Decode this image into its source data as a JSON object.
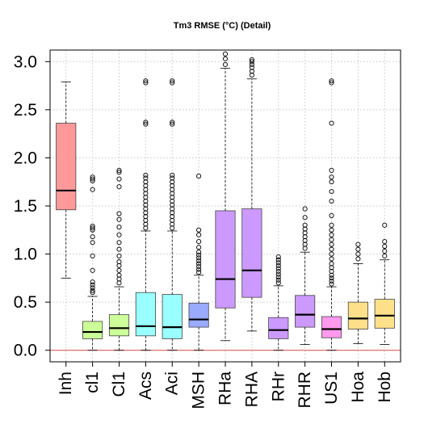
{
  "chart_data": {
    "type": "box",
    "title": "Tm3 RMSE (°C) (Detail)",
    "xlabel": "",
    "ylabel": "",
    "ylim": [
      -0.12,
      3.12
    ],
    "y_ticks": [
      0.0,
      0.5,
      1.0,
      1.5,
      2.0,
      2.5,
      3.0
    ],
    "y_tick_labels": [
      "0.0",
      "0.5",
      "1.0",
      "1.5",
      "2.0",
      "2.5",
      "3.0"
    ],
    "grid": true,
    "reference_line": {
      "y": 0.0,
      "color": "#e06060"
    },
    "categories": [
      "Inh",
      "cl1",
      "Cl1",
      "Acs",
      "Aci",
      "MSH",
      "RHa",
      "RHA",
      "RHr",
      "RHR",
      "US1",
      "Hoa",
      "Hob"
    ],
    "colors": [
      "#ff9999",
      "#ccff99",
      "#ccff99",
      "#99ffff",
      "#99ffff",
      "#99aaff",
      "#cc99ff",
      "#cc99ff",
      "#cc99ff",
      "#cc99ff",
      "#ff99ee",
      "#ffe08a",
      "#ffe08a"
    ],
    "boxes": [
      {
        "label": "Inh",
        "whisker_low": 0.75,
        "q1": 1.46,
        "median": 1.66,
        "q3": 2.36,
        "whisker_high": 2.79,
        "outliers": []
      },
      {
        "label": "cl1",
        "whisker_low": 0.0,
        "q1": 0.12,
        "median": 0.19,
        "q3": 0.3,
        "whisker_high": 0.56,
        "outliers": [
          0.6,
          0.62,
          0.65,
          0.68,
          0.71,
          0.83,
          0.98,
          1.12,
          1.18,
          1.25,
          1.27,
          1.29,
          1.67,
          1.76,
          1.78,
          1.8
        ]
      },
      {
        "label": "Cl1",
        "whisker_low": 0.0,
        "q1": 0.15,
        "median": 0.23,
        "q3": 0.37,
        "whisker_high": 0.66,
        "outliers": [
          0.7,
          0.74,
          0.78,
          0.83,
          0.88,
          0.92,
          0.98,
          1.05,
          1.12,
          1.2,
          1.28,
          1.36,
          1.42,
          1.7,
          1.78,
          1.85,
          1.87
        ]
      },
      {
        "label": "Acs",
        "whisker_low": 0.0,
        "q1": 0.15,
        "median": 0.25,
        "q3": 0.6,
        "whisker_high": 1.24,
        "outliers": [
          1.27,
          1.31,
          1.35,
          1.39,
          1.43,
          1.47,
          1.51,
          1.55,
          1.59,
          1.63,
          1.67,
          1.71,
          1.75,
          1.79,
          1.82,
          2.35,
          2.37,
          2.78,
          2.8
        ]
      },
      {
        "label": "Aci",
        "whisker_low": 0.0,
        "q1": 0.12,
        "median": 0.24,
        "q3": 0.58,
        "whisker_high": 1.24,
        "outliers": [
          1.27,
          1.31,
          1.35,
          1.39,
          1.43,
          1.47,
          1.51,
          1.55,
          1.59,
          1.63,
          1.67,
          1.71,
          1.75,
          1.79,
          1.82,
          2.35,
          2.37,
          2.78,
          2.8
        ]
      },
      {
        "label": "MSH",
        "whisker_low": 0.0,
        "q1": 0.24,
        "median": 0.32,
        "q3": 0.49,
        "whisker_high": 0.78,
        "outliers": [
          0.81,
          0.84,
          0.87,
          0.9,
          0.93,
          0.96,
          0.99,
          1.02,
          1.07,
          1.13,
          1.2,
          1.25,
          1.81
        ]
      },
      {
        "label": "RHa",
        "whisker_low": 0.1,
        "q1": 0.44,
        "median": 0.74,
        "q3": 1.45,
        "whisker_high": 2.93,
        "outliers": [
          2.97,
          3.03,
          3.08
        ]
      },
      {
        "label": "RHA",
        "whisker_low": 0.2,
        "q1": 0.55,
        "median": 0.83,
        "q3": 1.47,
        "whisker_high": 2.82,
        "outliers": [
          2.86,
          2.9,
          2.94,
          2.97,
          3.0,
          3.02
        ]
      },
      {
        "label": "RHr",
        "whisker_low": 0.0,
        "q1": 0.12,
        "median": 0.21,
        "q3": 0.34,
        "whisker_high": 0.67,
        "outliers": [
          0.7,
          0.73,
          0.76,
          0.79,
          0.82,
          0.85,
          0.88,
          0.91,
          0.94,
          0.97
        ]
      },
      {
        "label": "RHR",
        "whisker_low": 0.06,
        "q1": 0.24,
        "median": 0.37,
        "q3": 0.57,
        "whisker_high": 1.02,
        "outliers": [
          1.06,
          1.1,
          1.14,
          1.18,
          1.22,
          1.26,
          1.3,
          1.38,
          1.47
        ]
      },
      {
        "label": "US1",
        "whisker_low": 0.0,
        "q1": 0.13,
        "median": 0.22,
        "q3": 0.35,
        "whisker_high": 0.66,
        "outliers": [
          0.69,
          0.72,
          0.75,
          0.78,
          0.82,
          0.86,
          0.9,
          0.95,
          1.0,
          1.05,
          1.1,
          1.15,
          1.2,
          1.25,
          1.3,
          1.4,
          1.55,
          1.65,
          1.75,
          1.8,
          1.87,
          2.36,
          2.78,
          2.8
        ]
      },
      {
        "label": "Hoa",
        "whisker_low": 0.07,
        "q1": 0.22,
        "median": 0.33,
        "q3": 0.5,
        "whisker_high": 0.9,
        "outliers": [
          0.95,
          1.0,
          1.05,
          1.1
        ]
      },
      {
        "label": "Hob",
        "whisker_low": 0.06,
        "q1": 0.23,
        "median": 0.36,
        "q3": 0.53,
        "whisker_high": 0.94,
        "outliers": [
          0.98,
          1.03,
          1.08,
          1.13,
          1.3
        ]
      }
    ]
  }
}
